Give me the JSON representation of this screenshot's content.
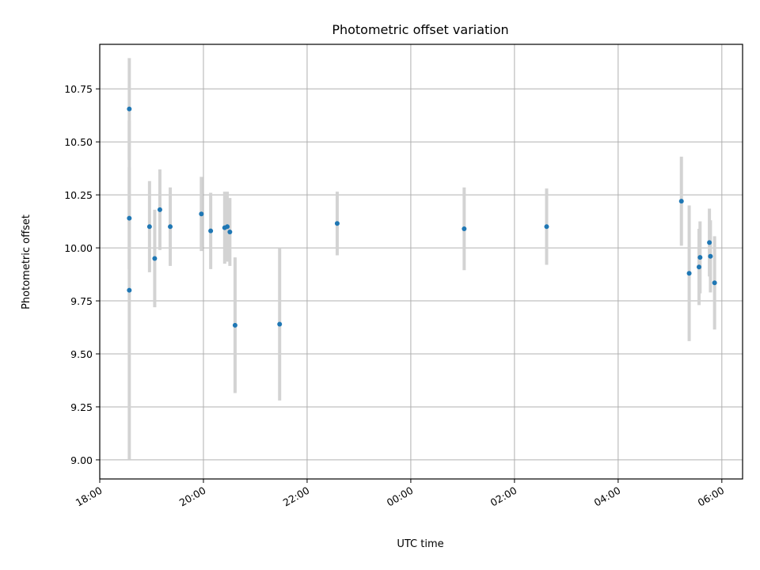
{
  "chart_data": {
    "type": "scatter",
    "title": "Photometric offset variation",
    "xlabel": "UTC time",
    "ylabel": "Photometric offset",
    "x_unit": "hours",
    "xlim": [
      18.0,
      30.4
    ],
    "ylim": [
      8.91,
      10.96
    ],
    "grid": true,
    "x_ticks": [
      {
        "value": 18,
        "label": "18:00"
      },
      {
        "value": 20,
        "label": "20:00"
      },
      {
        "value": 22,
        "label": "22:00"
      },
      {
        "value": 24,
        "label": "00:00"
      },
      {
        "value": 26,
        "label": "02:00"
      },
      {
        "value": 28,
        "label": "04:00"
      },
      {
        "value": 30,
        "label": "06:00"
      }
    ],
    "y_ticks": [
      {
        "value": 9.0,
        "label": "9.00"
      },
      {
        "value": 9.25,
        "label": "9.25"
      },
      {
        "value": 9.5,
        "label": "9.50"
      },
      {
        "value": 9.75,
        "label": "9.75"
      },
      {
        "value": 10.0,
        "label": "10.00"
      },
      {
        "value": 10.25,
        "label": "10.25"
      },
      {
        "value": 10.5,
        "label": "10.50"
      },
      {
        "value": 10.75,
        "label": "10.75"
      }
    ],
    "colors": {
      "point": "#1f77b4",
      "errorbar": "#d3d3d3",
      "grid": "#b0b0b0"
    },
    "points": [
      {
        "x": 18.57,
        "y": 10.655,
        "yerr": 0.24
      },
      {
        "x": 18.57,
        "y": 10.14,
        "yerr": 0.24
      },
      {
        "x": 18.57,
        "y": 9.8,
        "yerr": 0.8
      },
      {
        "x": 18.96,
        "y": 10.1,
        "yerr": 0.215
      },
      {
        "x": 19.06,
        "y": 9.95,
        "yerr": 0.23
      },
      {
        "x": 19.16,
        "y": 10.18,
        "yerr": 0.19
      },
      {
        "x": 19.36,
        "y": 10.1,
        "yerr": 0.185
      },
      {
        "x": 19.96,
        "y": 10.16,
        "yerr": 0.175
      },
      {
        "x": 20.14,
        "y": 10.08,
        "yerr": 0.18
      },
      {
        "x": 20.41,
        "y": 10.095,
        "yerr": 0.17
      },
      {
        "x": 20.46,
        "y": 10.1,
        "yerr": 0.165
      },
      {
        "x": 20.51,
        "y": 10.075,
        "yerr": 0.16
      },
      {
        "x": 20.61,
        "y": 9.635,
        "yerr": 0.32
      },
      {
        "x": 21.47,
        "y": 9.64,
        "yerr": 0.36
      },
      {
        "x": 22.58,
        "y": 10.115,
        "yerr": 0.15
      },
      {
        "x": 25.03,
        "y": 10.09,
        "yerr": 0.195
      },
      {
        "x": 26.62,
        "y": 10.1,
        "yerr": 0.18
      },
      {
        "x": 29.22,
        "y": 10.22,
        "yerr": 0.21
      },
      {
        "x": 29.37,
        "y": 9.88,
        "yerr": 0.32
      },
      {
        "x": 29.56,
        "y": 9.91,
        "yerr": 0.18
      },
      {
        "x": 29.58,
        "y": 9.955,
        "yerr": 0.17
      },
      {
        "x": 29.76,
        "y": 10.025,
        "yerr": 0.16
      },
      {
        "x": 29.78,
        "y": 9.96,
        "yerr": 0.17
      },
      {
        "x": 29.86,
        "y": 9.835,
        "yerr": 0.22
      }
    ]
  }
}
